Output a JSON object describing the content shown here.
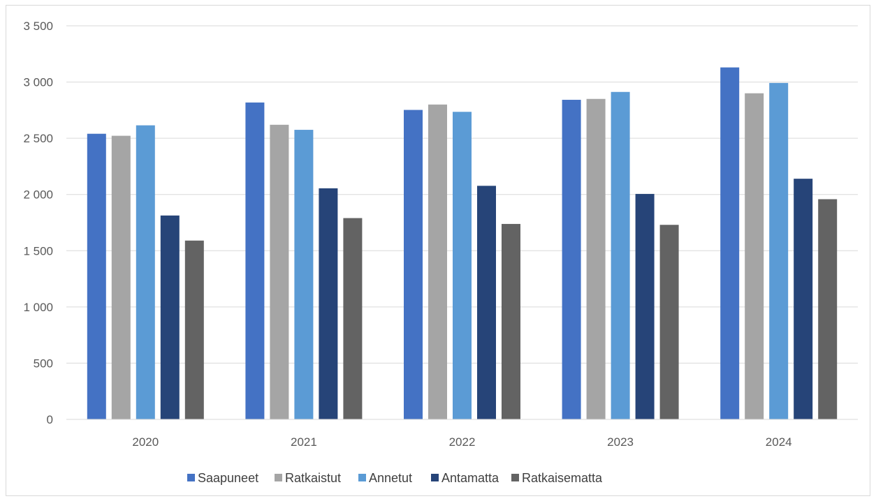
{
  "chart_data": {
    "type": "bar",
    "title": "",
    "xlabel": "",
    "ylabel": "",
    "categories": [
      "2020",
      "2021",
      "2022",
      "2023",
      "2024"
    ],
    "ylim": [
      0,
      3500
    ],
    "ytick_values": [
      0,
      500,
      1000,
      1500,
      2000,
      2500,
      3000,
      3500
    ],
    "ytick_labels": [
      "0",
      "500",
      "1 000",
      "1 500",
      "2 000",
      "2 500",
      "3 000",
      "3 500"
    ],
    "grid": true,
    "legend_position": "bottom",
    "series": [
      {
        "name": "Saapuneet",
        "color": "#4472c4",
        "values": [
          2540,
          2818,
          2752,
          2842,
          3130
        ]
      },
      {
        "name": "Ratkaistut",
        "color": "#a5a5a5",
        "values": [
          2522,
          2620,
          2800,
          2850,
          2900
        ]
      },
      {
        "name": "Annetut",
        "color": "#5b9bd5",
        "values": [
          2615,
          2575,
          2735,
          2912,
          2992
        ]
      },
      {
        "name": "Antamatta",
        "color": "#264478",
        "values": [
          1813,
          2055,
          2077,
          2005,
          2140
        ]
      },
      {
        "name": "Ratkaisematta",
        "color": "#636363",
        "values": [
          1590,
          1790,
          1738,
          1730,
          1958
        ]
      }
    ]
  }
}
